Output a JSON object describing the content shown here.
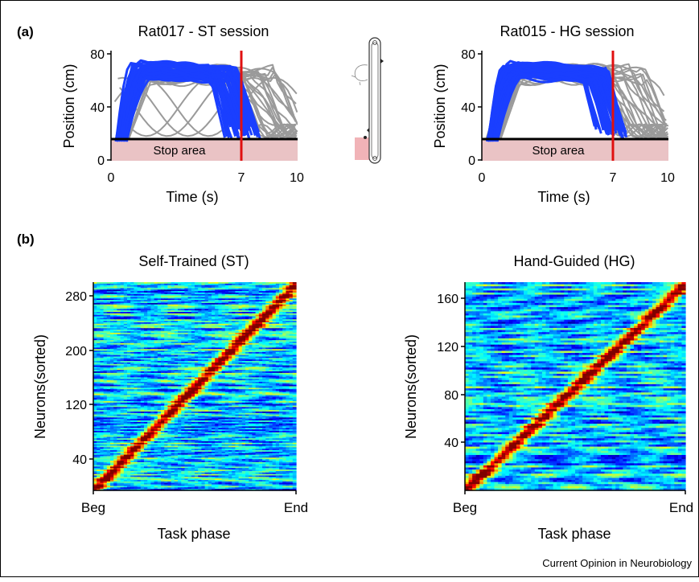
{
  "panel_a": {
    "label": "(a)",
    "stop_area_label": "Stop area",
    "colors": {
      "trial_blue": "#1a3fff",
      "trial_gray": "#9a9a9a",
      "stop_line": "#e01010",
      "stop_fill": "#eac3c5"
    },
    "charts": [
      {
        "title": "Rat017 - ST session",
        "xlabel": "Time (s)",
        "ylabel": "Position (cm)",
        "xticks": [
          "0",
          "7",
          "10"
        ],
        "yticks": [
          "0",
          "40",
          "80"
        ],
        "xlim": [
          0,
          10
        ],
        "ylim": [
          0,
          80
        ],
        "stop_time": 7,
        "stop_area_upper": 15
      },
      {
        "title": "Rat015 - HG session",
        "xlabel": "Time (s)",
        "ylabel": "Position (cm)",
        "xticks": [
          "0",
          "7",
          "10"
        ],
        "yticks": [
          "0",
          "40",
          "80"
        ],
        "xlim": [
          0,
          10
        ],
        "ylim": [
          0,
          80
        ],
        "stop_time": 7,
        "stop_area_upper": 15
      }
    ]
  },
  "panel_b": {
    "label": "(b)",
    "charts": [
      {
        "title": "Self-Trained (ST)",
        "xlabel": "Task phase",
        "ylabel": "Neurons(sorted)",
        "xticks": [
          "Beg",
          "End"
        ],
        "yticks": [
          "40",
          "120",
          "200",
          "280"
        ],
        "ylim": [
          0,
          295
        ],
        "n_neurons": 295
      },
      {
        "title": "Hand-Guided (HG)",
        "xlabel": "Task phase",
        "ylabel": "Neurons(sorted)",
        "xticks": [
          "Beg",
          "End"
        ],
        "yticks": [
          "40",
          "80",
          "120",
          "160"
        ],
        "ylim": [
          0,
          172
        ],
        "n_neurons": 172
      }
    ]
  },
  "footer": "Current Opinion in Neurobiology",
  "chart_data": [
    {
      "type": "line",
      "title": "Rat017 - ST session",
      "xlabel": "Time (s)",
      "ylabel": "Position (cm)",
      "xlim": [
        0,
        10
      ],
      "ylim": [
        0,
        80
      ],
      "series": [
        {
          "name": "",
          "color": "#9a9a9a",
          "x": [
            0,
            0.5,
            1,
            2,
            3,
            5,
            6,
            7,
            8,
            9,
            10
          ],
          "y": [
            65,
            68,
            66,
            64,
            62,
            55,
            45,
            30,
            25,
            28,
            30
          ]
        },
        {
          "name": "",
          "color": "#9a9a9a",
          "x": [
            0,
            1,
            2,
            3,
            4,
            5,
            6,
            7,
            8,
            9,
            10
          ],
          "y": [
            55,
            45,
            35,
            50,
            30,
            45,
            62,
            65,
            50,
            40,
            30
          ]
        },
        {
          "name": "",
          "color": "#1a3fff",
          "x": [
            0.3,
            0.8,
            1.5,
            3,
            4.5,
            5.5,
            6.5,
            7
          ],
          "y": [
            15,
            50,
            72,
            70,
            68,
            60,
            35,
            20
          ]
        }
      ],
      "reference_lines": {
        "vertical_x": 7,
        "horizontal_y": 15
      }
    },
    {
      "type": "line",
      "title": "Rat015 - HG session",
      "xlabel": "Time (s)",
      "ylabel": "Position (cm)",
      "xlim": [
        0,
        10
      ],
      "ylim": [
        0,
        80
      ],
      "series": [
        {
          "name": "",
          "color": "#9a9a9a",
          "x": [
            0.4,
            1,
            2,
            4,
            6,
            7,
            8,
            9,
            9.5
          ],
          "y": [
            18,
            50,
            68,
            72,
            70,
            60,
            40,
            25,
            18
          ]
        },
        {
          "name": "",
          "color": "#1a3fff",
          "x": [
            0.3,
            0.9,
            1.5,
            3,
            5,
            6,
            6.8,
            7.5
          ],
          "y": [
            18,
            55,
            70,
            68,
            67,
            62,
            40,
            20
          ]
        }
      ],
      "reference_lines": {
        "vertical_x": 7,
        "horizontal_y": 15
      }
    },
    {
      "type": "heatmap",
      "title": "Self-Trained (ST)",
      "xlabel": "Task phase",
      "ylabel": "Neurons(sorted)",
      "x_categories": [
        "Beg",
        "End"
      ],
      "ylim": [
        0,
        295
      ]
    },
    {
      "type": "heatmap",
      "title": "Hand-Guided (HG)",
      "xlabel": "Task phase",
      "ylabel": "Neurons(sorted)",
      "x_categories": [
        "Beg",
        "End"
      ],
      "ylim": [
        0,
        172
      ]
    }
  ]
}
